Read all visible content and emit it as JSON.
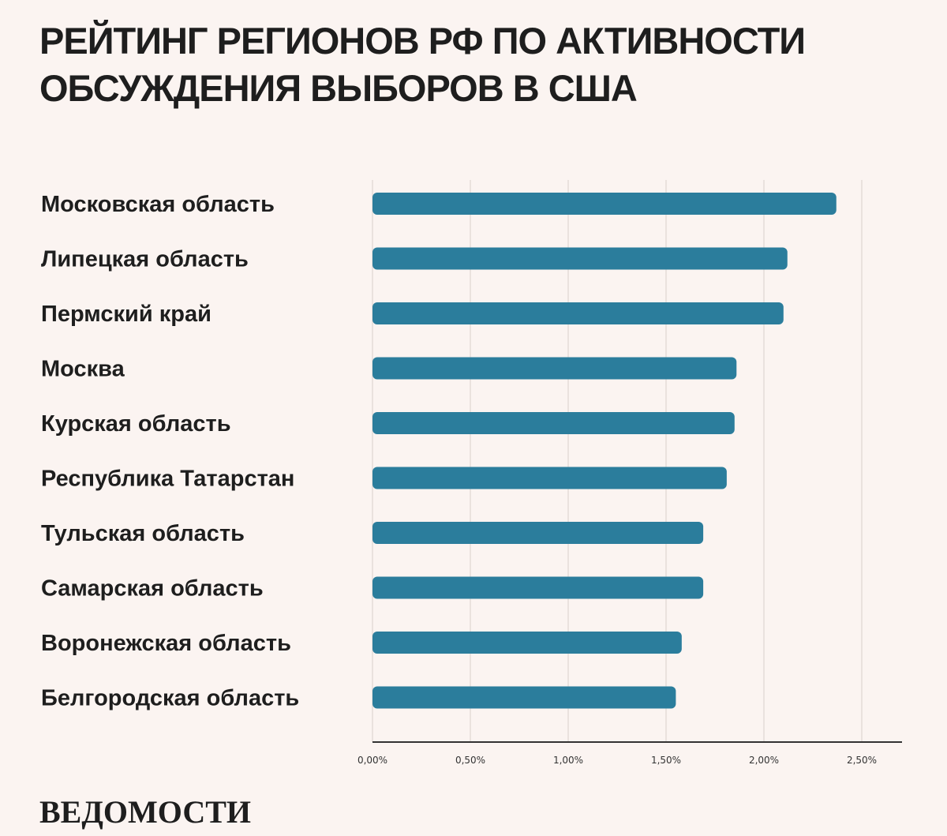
{
  "chart_data": {
    "type": "bar",
    "orientation": "horizontal",
    "title": "Рейтинг регионов РФ по активности обсуждения выборов в США",
    "categories": [
      "Московская область",
      "Липецкая область",
      "Пермский край",
      "Москва",
      "Курская область",
      "Республика Татарстан",
      "Тульская область",
      "Самарская область",
      "Воронежская область",
      "Белгородская область"
    ],
    "values": [
      2.37,
      2.12,
      2.1,
      1.86,
      1.85,
      1.81,
      1.69,
      1.69,
      1.58,
      1.55
    ],
    "value_unit": "%",
    "xlim": [
      0,
      2.5
    ],
    "x_ticks": [
      0,
      0.5,
      1.0,
      1.5,
      2.0,
      2.5
    ],
    "x_tick_labels": [
      "0,00%",
      "0,50%",
      "1,00%",
      "1,50%",
      "2,00%",
      "2,50%"
    ],
    "grid": true,
    "bar_color": "#2b7d9c",
    "xlabel": "",
    "ylabel": ""
  },
  "publisher": {
    "name": "ВЕДОМОСТИ"
  },
  "colors": {
    "background": "#fbf4f1",
    "text": "#1e1e1e",
    "grid": "#e4dcd8",
    "axis": "#333333"
  }
}
